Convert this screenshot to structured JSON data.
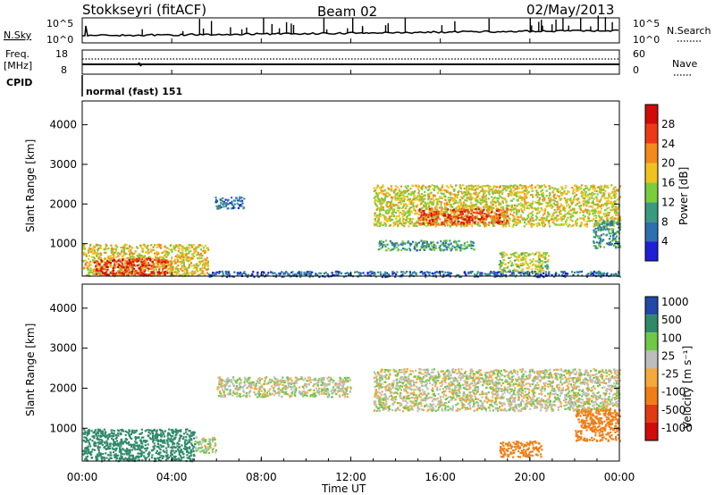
{
  "header": {
    "station": "Stokkseyri (fitACF)",
    "beam": "Beam 02",
    "date": "02/May/2013"
  },
  "noise_panel": {
    "left_label": "N.Sky",
    "right_label": "N.Search",
    "tick_top": "10^5",
    "tick_bottom": "10^0"
  },
  "freq_panel": {
    "left_label_1": "Freq.",
    "left_label_2": "[MHz]",
    "left_tick_top": "18",
    "left_tick_bottom": "8",
    "right_tick_top": "60",
    "right_tick_bottom": "0",
    "right_label": "Nave"
  },
  "cpid_panel": {
    "label": "CPID",
    "text": "normal (fast) 151"
  },
  "power_panel": {
    "ylabel": "Slant Range [km]",
    "yticks": [
      "1000",
      "2000",
      "3000",
      "4000"
    ],
    "colorbar_label": "Power [dB]",
    "colorbar_ticks": [
      "4",
      "8",
      "12",
      "16",
      "20",
      "24",
      "28"
    ]
  },
  "velocity_panel": {
    "ylabel": "Slant Range [km]",
    "yticks": [
      "1000",
      "2000",
      "3000",
      "4000"
    ],
    "colorbar_label": "Velocity [m s⁻¹]",
    "colorbar_ticks": [
      "1000",
      "500",
      "100",
      "25",
      "-25",
      "-100",
      "-500",
      "-1000"
    ]
  },
  "x_axis": {
    "label": "Time UT",
    "ticks": [
      "00:00",
      "04:00",
      "08:00",
      "12:00",
      "16:00",
      "20:00",
      "00:00"
    ]
  },
  "colors": {
    "power_scale": [
      "#1f1fd6",
      "#2e6fb0",
      "#3a9a7d",
      "#7ccd3c",
      "#f0c21e",
      "#f28a1c",
      "#ee3a14",
      "#d10a0a"
    ],
    "velocity_scale": [
      "#2248a8",
      "#2f8a6a",
      "#6fc846",
      "#bdbdbd",
      "#f5a93a",
      "#f07e14",
      "#e23a12",
      "#d10a0a"
    ]
  },
  "chart_data": {
    "type": "heatmap",
    "x_unit": "hours UT",
    "xlim": [
      0,
      24
    ],
    "ylim": [
      180,
      4600
    ],
    "power_regions": [
      {
        "t0": 0.0,
        "t1": 5.6,
        "r0": 200,
        "r1": 1000,
        "level": 18
      },
      {
        "t0": 0.5,
        "t1": 3.8,
        "r0": 220,
        "r1": 650,
        "level": 27
      },
      {
        "t0": 5.6,
        "t1": 24.0,
        "r0": 180,
        "r1": 320,
        "level": 6
      },
      {
        "t0": 5.9,
        "t1": 7.2,
        "r0": 1900,
        "r1": 2200,
        "level": 6
      },
      {
        "t0": 13.0,
        "t1": 24.0,
        "r0": 1450,
        "r1": 2500,
        "level": 17
      },
      {
        "t0": 15.0,
        "t1": 19.0,
        "r0": 1500,
        "r1": 1900,
        "level": 26
      },
      {
        "t0": 13.2,
        "t1": 17.5,
        "r0": 850,
        "r1": 1100,
        "level": 10
      },
      {
        "t0": 18.6,
        "t1": 20.8,
        "r0": 300,
        "r1": 800,
        "level": 15
      },
      {
        "t0": 22.8,
        "t1": 24.0,
        "r0": 900,
        "r1": 1600,
        "level": 10
      }
    ],
    "velocity_regions": [
      {
        "t0": 0.0,
        "t1": 5.0,
        "r0": 200,
        "r1": 1000,
        "vel": 300
      },
      {
        "t0": 5.0,
        "t1": 6.0,
        "r0": 400,
        "r1": 800,
        "vel": 20
      },
      {
        "t0": 6.0,
        "t1": 12.0,
        "r0": 1800,
        "r1": 2300,
        "vel": 10
      },
      {
        "t0": 13.0,
        "t1": 24.0,
        "r0": 1450,
        "r1": 2500,
        "vel": 0
      },
      {
        "t0": 18.6,
        "t1": 20.5,
        "r0": 300,
        "r1": 700,
        "vel": -200
      },
      {
        "t0": 22.0,
        "t1": 24.0,
        "r0": 700,
        "r1": 1500,
        "vel": -400
      }
    ]
  }
}
